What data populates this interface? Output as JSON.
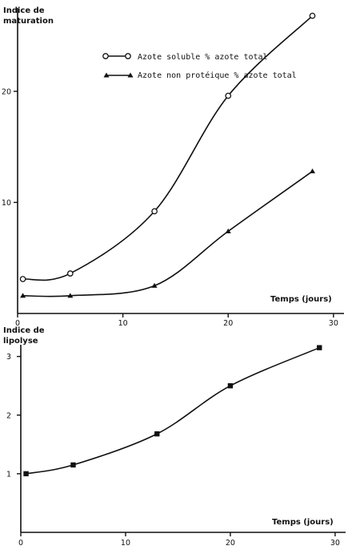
{
  "chart_data": [
    {
      "type": "line",
      "ylabel_line1": "Indice de",
      "ylabel_line2": "maturation",
      "xlabel": "Temps (jours)",
      "xlim": [
        0,
        31
      ],
      "ylim": [
        0,
        27.5
      ],
      "xticks": [
        0,
        10,
        20,
        30
      ],
      "yticks": [
        10,
        20
      ],
      "legend_position": "top-center",
      "series": [
        {
          "name": "Azote soluble % azote total",
          "marker": "circle-open",
          "x": [
            0.5,
            5,
            13,
            20,
            28
          ],
          "y": [
            3.1,
            3.6,
            9.2,
            19.6,
            26.8
          ]
        },
        {
          "name": "Azote non protéique % azote total",
          "marker": "triangle-filled",
          "x": [
            0.5,
            5,
            13,
            20,
            28
          ],
          "y": [
            1.6,
            1.6,
            2.5,
            7.4,
            12.8
          ]
        }
      ]
    },
    {
      "type": "line",
      "ylabel_line1": "Indice de",
      "ylabel_line2": "lipolyse",
      "xlabel": "Temps (jours)",
      "xlim": [
        0,
        31
      ],
      "ylim": [
        0,
        3.2
      ],
      "xticks": [
        0,
        10,
        20,
        30
      ],
      "yticks": [
        1,
        2,
        3
      ],
      "series": [
        {
          "marker": "square-filled",
          "x": [
            0.5,
            5,
            13,
            20,
            28.5
          ],
          "y": [
            1.0,
            1.15,
            1.68,
            2.5,
            3.15
          ]
        }
      ]
    }
  ]
}
